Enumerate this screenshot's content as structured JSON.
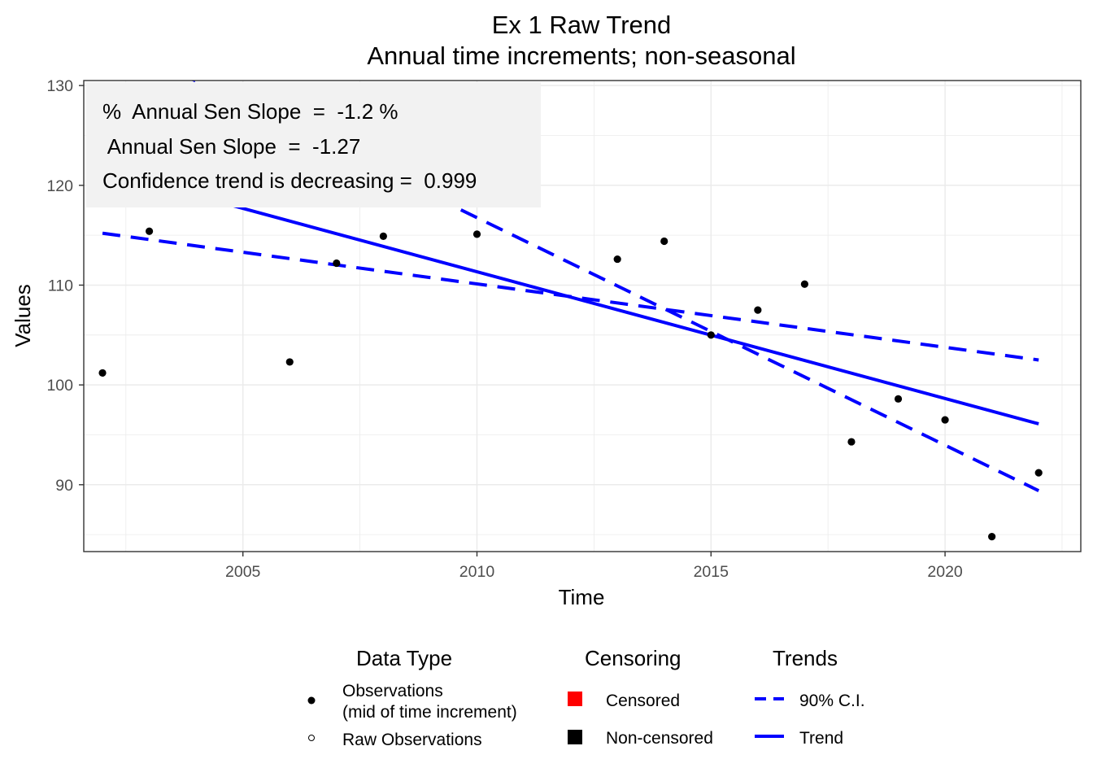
{
  "chart_data": {
    "type": "scatter",
    "title": "Ex 1 Raw Trend",
    "subtitle": "Annual time increments; non-seasonal",
    "xlabel": "Time",
    "ylabel": "Values",
    "xlim": [
      2001.6,
      2022.9
    ],
    "ylim": [
      83.3,
      130.5
    ],
    "x_ticks": [
      2005,
      2010,
      2015,
      2020
    ],
    "y_ticks": [
      90,
      100,
      110,
      120,
      130
    ],
    "grid": true,
    "annotation": [
      "%  Annual Sen Slope  =  -1.2 %",
      " Annual Sen Slope  =  -1.27",
      "Confidence trend is decreasing =  0.999"
    ],
    "observations": {
      "x": [
        2002,
        2003,
        2006,
        2007,
        2008,
        2010,
        2013,
        2014,
        2015,
        2016,
        2017,
        2018,
        2019,
        2020,
        2021,
        2022
      ],
      "y": [
        101.2,
        115.4,
        102.3,
        112.2,
        114.9,
        115.1,
        112.6,
        114.4,
        105.0,
        107.5,
        110.1,
        94.3,
        98.6,
        96.5,
        84.8,
        91.2
      ]
    },
    "trend": {
      "x": [
        2002,
        2022
      ],
      "y": [
        121.5,
        96.1
      ]
    },
    "ci_upper": {
      "x": [
        2002,
        2022
      ],
      "y": [
        135.0,
        89.4
      ]
    },
    "ci_lower": {
      "x": [
        2002,
        2022
      ],
      "y": [
        115.2,
        102.5
      ]
    },
    "colors": {
      "trend": "#0000ff",
      "observation": "#000000",
      "censored": "#ff0000",
      "non_censored": "#000000",
      "annotation_bg": "#f2f2f2"
    },
    "legend": {
      "placement": "bottom",
      "groups": [
        {
          "title": "Data Type",
          "items": [
            {
              "label": "Observations",
              "label2": "(mid of time increment)",
              "symbol": "filled-circle"
            },
            {
              "label": "Raw Observations",
              "symbol": "open-circle"
            }
          ]
        },
        {
          "title": "Censoring",
          "items": [
            {
              "label": "Censored",
              "symbol": "red-square"
            },
            {
              "label": "Non-censored",
              "symbol": "black-square"
            }
          ]
        },
        {
          "title": "Trends",
          "items": [
            {
              "label": "90% C.I.",
              "symbol": "dashed-line"
            },
            {
              "label": "Trend",
              "symbol": "solid-line"
            }
          ]
        }
      ]
    }
  }
}
